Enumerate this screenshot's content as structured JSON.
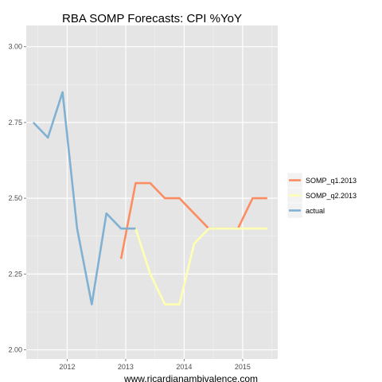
{
  "chart_data": {
    "type": "line",
    "title": "RBA SOMP Forecasts: CPI %YoY",
    "xlabel": "www.ricardianambivalence.com",
    "ylabel": "",
    "xlim": [
      2011.3,
      2015.6
    ],
    "ylim": [
      1.97,
      3.07
    ],
    "x_ticks": [
      2012,
      2013,
      2014,
      2015
    ],
    "x_tick_labels": [
      "2012",
      "2013",
      "2014",
      "2015"
    ],
    "y_ticks": [
      2.0,
      2.25,
      2.5,
      2.75,
      3.0
    ],
    "y_tick_labels": [
      "2.00",
      "2.25",
      "2.50",
      "2.75",
      "3.00"
    ],
    "grid": true,
    "legend_position": "right",
    "series": [
      {
        "name": "SOMP_q1.2013",
        "color": "#fc8d62",
        "x": [
          2012.92,
          2013.17,
          2013.42,
          2013.67,
          2013.92,
          2014.17,
          2014.42,
          2014.67,
          2014.92,
          2015.17,
          2015.42
        ],
        "y": [
          2.3,
          2.55,
          2.55,
          2.5,
          2.5,
          2.45,
          2.4,
          2.4,
          2.4,
          2.5,
          2.5
        ]
      },
      {
        "name": "SOMP_q2.2013",
        "color": "#ffffb3",
        "x": [
          2013.17,
          2013.42,
          2013.67,
          2013.92,
          2014.17,
          2014.42,
          2014.67,
          2014.92,
          2015.17,
          2015.42
        ],
        "y": [
          2.4,
          2.25,
          2.15,
          2.15,
          2.35,
          2.4,
          2.4,
          2.4,
          2.4,
          2.4
        ]
      },
      {
        "name": "actual",
        "color": "#80b1d3",
        "x": [
          2011.42,
          2011.67,
          2011.92,
          2012.17,
          2012.42,
          2012.67,
          2012.92,
          2013.17
        ],
        "y": [
          2.75,
          2.7,
          2.85,
          2.4,
          2.15,
          2.45,
          2.4,
          2.4
        ]
      }
    ]
  }
}
